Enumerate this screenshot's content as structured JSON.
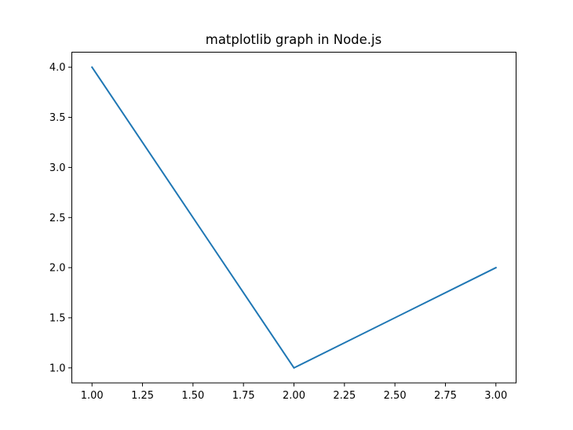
{
  "chart_data": {
    "type": "line",
    "title": "matplotlib graph in Node.js",
    "xlabel": "",
    "ylabel": "",
    "x": [
      1,
      2,
      3
    ],
    "series": [
      {
        "values": [
          4,
          1,
          2
        ],
        "color": "#1f77b4"
      }
    ],
    "xlim": [
      0.9,
      3.1
    ],
    "ylim": [
      0.85,
      4.15
    ],
    "xticks": [
      1.0,
      1.25,
      1.5,
      1.75,
      2.0,
      2.25,
      2.5,
      2.75,
      3.0
    ],
    "xtick_labels": [
      "1.00",
      "1.25",
      "1.50",
      "1.75",
      "2.00",
      "2.25",
      "2.50",
      "2.75",
      "3.00"
    ],
    "yticks": [
      1.0,
      1.5,
      2.0,
      2.5,
      3.0,
      3.5,
      4.0
    ],
    "ytick_labels": [
      "1.0",
      "1.5",
      "2.0",
      "2.5",
      "3.0",
      "3.5",
      "4.0"
    ],
    "grid": false
  }
}
